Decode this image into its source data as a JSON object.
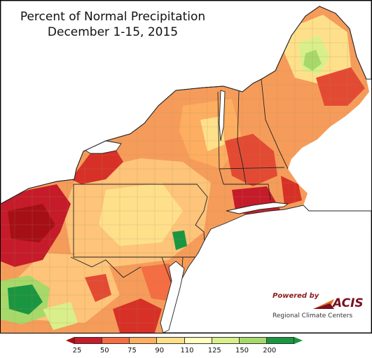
{
  "title": {
    "line1": "Percent of Normal Precipitation",
    "line2": "December 1-15, 2015"
  },
  "branding": {
    "powered_by": "Powered by",
    "name": "ACIS",
    "subtitle": "Regional Climate Centers"
  },
  "legend": {
    "labels": [
      "25",
      "50",
      "75",
      "90",
      "110",
      "125",
      "150",
      "200"
    ],
    "colors": [
      "#c51b2a",
      "#f46d43",
      "#fdae61",
      "#fee08b",
      "#ffffbf",
      "#d9ef8b",
      "#a6d96a",
      "#1a9641"
    ],
    "below_color": "#a50f15",
    "above_color": "#1a9641"
  },
  "colors": {
    "water": "#ffffff",
    "outline": "#222222",
    "county_line": "#b08a5a"
  }
}
